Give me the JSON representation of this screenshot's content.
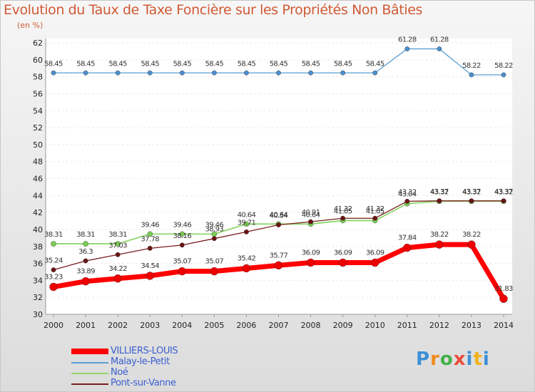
{
  "header": {
    "title": "Evolution du Taux de Taxe Foncière sur les Propriétés Non Bâties",
    "unit": "(en %)"
  },
  "logo": {
    "text": "Proxiti"
  },
  "colors": {
    "villiers": "#ff0000",
    "malay": "#5a9fd4",
    "noe": "#8fd86a",
    "pont": "#7a1e1e",
    "axis": "#9a9a9a",
    "grid": "#d24a3a"
  },
  "chart_data": {
    "type": "line",
    "title": "Evolution du Taux de Taxe Foncière sur les Propriétés Non Bâties",
    "ylabel": "(en %)",
    "xlabel": "",
    "x": [
      "2000",
      "2001",
      "2002",
      "2003",
      "2004",
      "2005",
      "2006",
      "2007",
      "2008",
      "2009",
      "2010",
      "2011",
      "2012",
      "2013",
      "2014"
    ],
    "ylim": [
      30,
      62
    ],
    "yticks": [
      30,
      32,
      34,
      36,
      38,
      40,
      42,
      44,
      46,
      48,
      50,
      52,
      54,
      56,
      58,
      60,
      62
    ],
    "legend_position": "bottom-left",
    "series": [
      {
        "key": "malay",
        "name": "Malay-le-Petit",
        "values": [
          58.45,
          58.45,
          58.45,
          58.45,
          58.45,
          58.45,
          58.45,
          58.45,
          58.45,
          58.45,
          58.45,
          61.28,
          61.28,
          58.22,
          58.22
        ],
        "labels": [
          "58.45",
          "58.45",
          "58.45",
          "58.45",
          "58.45",
          "58.45",
          "58.45",
          "58.45",
          "58.45",
          "58.45",
          "58.45",
          "61.28",
          "61.28",
          "58.22",
          "58.22"
        ]
      },
      {
        "key": "noe",
        "name": "Noé",
        "values": [
          38.31,
          38.31,
          38.31,
          39.46,
          39.46,
          39.46,
          40.64,
          40.64,
          40.64,
          41.05,
          41.05,
          43.04,
          43.32,
          43.32,
          43.32
        ],
        "labels": [
          "38.31",
          "38.31",
          "38.31",
          "39.46",
          "39.46",
          "39.46",
          "40.64",
          "40.64",
          "40.64",
          "41.05",
          "41.05",
          "43.04",
          "43.32",
          "43.32",
          "43.32"
        ]
      },
      {
        "key": "pont",
        "name": "Pont-sur-Vanne",
        "values": [
          35.24,
          36.3,
          37.03,
          37.78,
          38.16,
          38.93,
          39.71,
          40.54,
          40.91,
          41.32,
          41.32,
          43.32,
          43.37,
          43.37,
          43.37
        ],
        "labels": [
          "35.24",
          "36.3",
          "37.03",
          "37.78",
          "38.16",
          "38.93",
          "39.71",
          "40.54",
          "40.91",
          "41.32",
          "41.32",
          "43.32",
          "43.37",
          "43.37",
          "43.37"
        ]
      },
      {
        "key": "villiers",
        "name": "VILLIERS-LOUIS",
        "values": [
          33.23,
          33.89,
          34.22,
          34.54,
          35.07,
          35.07,
          35.42,
          35.77,
          36.09,
          36.09,
          36.09,
          37.84,
          38.22,
          38.22,
          31.83
        ],
        "labels": [
          "33.23",
          "33.89",
          "34.22",
          "34.54",
          "35.07",
          "35.07",
          "35.42",
          "35.77",
          "36.09",
          "36.09",
          "36.09",
          "37.84",
          "38.22",
          "38.22",
          "31.83"
        ]
      }
    ],
    "legend": [
      "VILLIERS-LOUIS",
      "Malay-le-Petit",
      "Noé",
      "Pont-sur-Vanne"
    ]
  }
}
